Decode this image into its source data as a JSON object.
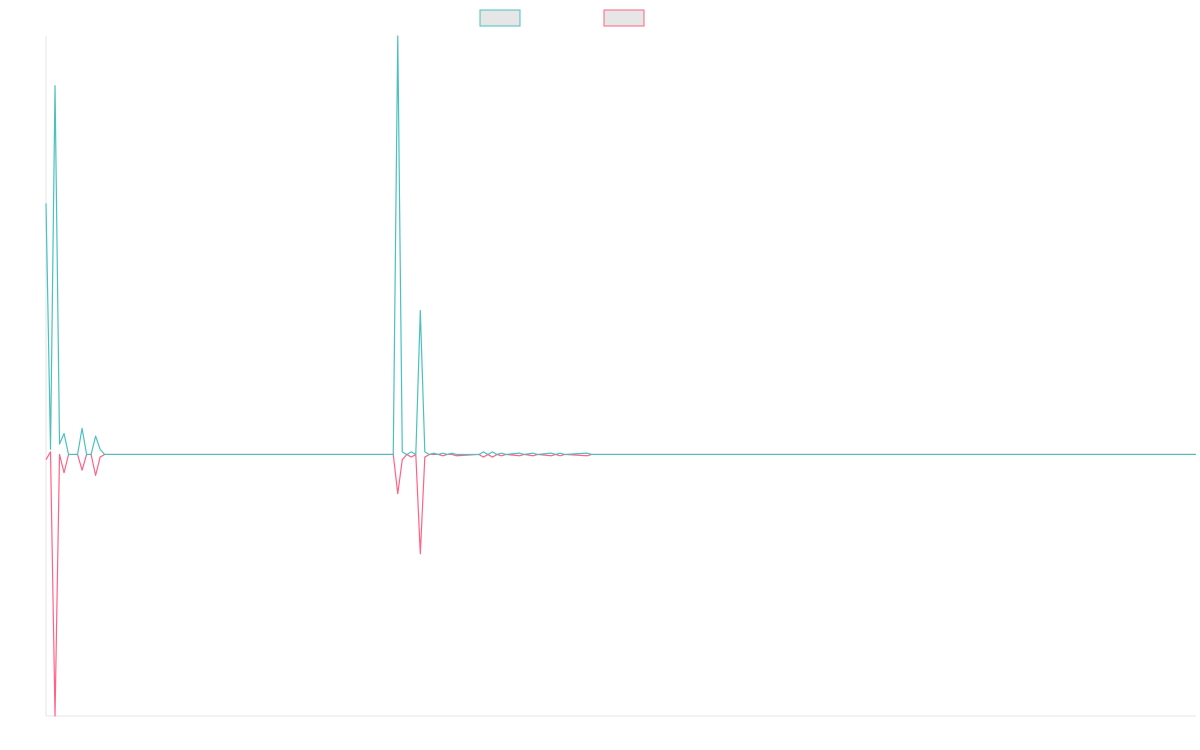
{
  "chart_data": {
    "type": "line",
    "title": "",
    "xlabel": "",
    "ylabel": "",
    "grid": false,
    "legend_position": "top-center",
    "xlim": [
      0,
      255
    ],
    "ylim": [
      -1.0,
      1.6
    ],
    "zero_value": 0,
    "series": [
      {
        "color": "#4bc0c0",
        "legend_fill": "#e6e6e6",
        "points": [
          [
            0,
            0.96
          ],
          [
            1,
            0.02
          ],
          [
            2,
            1.41
          ],
          [
            3,
            0.04
          ],
          [
            4,
            0.08
          ],
          [
            5,
            0
          ],
          [
            6,
            0
          ],
          [
            7,
            0
          ],
          [
            8,
            0.1
          ],
          [
            9,
            0
          ],
          [
            10,
            0
          ],
          [
            11,
            0.07
          ],
          [
            12,
            0.02
          ],
          [
            13,
            0
          ],
          [
            77,
            0
          ],
          [
            78,
            1.6
          ],
          [
            79,
            0.01
          ],
          [
            80,
            0
          ],
          [
            81,
            0.01
          ],
          [
            82,
            0
          ],
          [
            83,
            0.55
          ],
          [
            84,
            0.01
          ],
          [
            85,
            0
          ],
          [
            86,
            0.005
          ],
          [
            87,
            0
          ],
          [
            88,
            0.005
          ],
          [
            89,
            0
          ],
          [
            90,
            0.005
          ],
          [
            91,
            0
          ],
          [
            96,
            0
          ],
          [
            97,
            0.01
          ],
          [
            98,
            0
          ],
          [
            99,
            0.01
          ],
          [
            100,
            0
          ],
          [
            101,
            0.005
          ],
          [
            102,
            0
          ],
          [
            105,
            0.005
          ],
          [
            106,
            0
          ],
          [
            108,
            0.005
          ],
          [
            109,
            0
          ],
          [
            112,
            0.005
          ],
          [
            113,
            0
          ],
          [
            114,
            0.005
          ],
          [
            115,
            0
          ],
          [
            120,
            0.005
          ],
          [
            121,
            0
          ],
          [
            255,
            0
          ]
        ]
      },
      {
        "color": "#ff6384",
        "legend_fill": "#e6e6e6",
        "points": [
          [
            0,
            -0.02
          ],
          [
            1,
            0.01
          ],
          [
            2,
            -1.0
          ],
          [
            3,
            0.0
          ],
          [
            4,
            -0.07
          ],
          [
            5,
            0
          ],
          [
            6,
            0
          ],
          [
            7,
            0
          ],
          [
            8,
            -0.06
          ],
          [
            9,
            0
          ],
          [
            10,
            0
          ],
          [
            11,
            -0.08
          ],
          [
            12,
            -0.01
          ],
          [
            13,
            0
          ],
          [
            77,
            0
          ],
          [
            78,
            -0.15
          ],
          [
            79,
            -0.02
          ],
          [
            80,
            0
          ],
          [
            81,
            -0.01
          ],
          [
            82,
            0
          ],
          [
            83,
            -0.38
          ],
          [
            84,
            -0.01
          ],
          [
            85,
            0
          ],
          [
            86,
            0.0
          ],
          [
            87,
            0
          ],
          [
            88,
            -0.005
          ],
          [
            89,
            0
          ],
          [
            90,
            0
          ],
          [
            91,
            -0.005
          ],
          [
            96,
            0
          ],
          [
            97,
            -0.01
          ],
          [
            98,
            0
          ],
          [
            99,
            -0.01
          ],
          [
            100,
            0
          ],
          [
            101,
            -0.005
          ],
          [
            102,
            0
          ],
          [
            105,
            -0.005
          ],
          [
            106,
            0
          ],
          [
            108,
            -0.005
          ],
          [
            109,
            0
          ],
          [
            112,
            -0.005
          ],
          [
            113,
            0
          ],
          [
            114,
            -0.005
          ],
          [
            115,
            0
          ],
          [
            120,
            -0.005
          ],
          [
            121,
            0
          ],
          [
            255,
            0
          ]
        ]
      }
    ]
  }
}
